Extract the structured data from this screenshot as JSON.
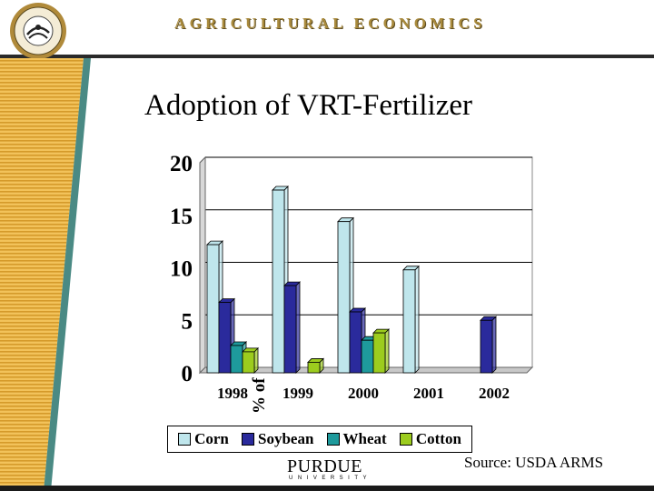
{
  "header": {
    "title": "AGRICULTURAL ECONOMICS",
    "seal_text": "AGRICULTURAL ECONOMICS"
  },
  "slide": {
    "title": "Adoption of VRT-Fertilizer",
    "source": "Source:  USDA ARMS",
    "logo_word": "PURDUE",
    "logo_sub": "UNIVERSITY"
  },
  "colors": {
    "corn": "#bfe6ec",
    "soybean": "#2a2a9c",
    "wheat": "#1e9a9c",
    "cotton": "#9ccc1e",
    "gold_stripe": "#e0a838",
    "teal_stripe": "#4a8a84",
    "header_text": "#a98a3c"
  },
  "chart_data": {
    "type": "bar",
    "title": "",
    "xlabel": "",
    "ylabel": "% of planted acres",
    "categories": [
      "1998",
      "1999",
      "2000",
      "2001",
      "2002"
    ],
    "yticks": [
      "0",
      "5",
      "10",
      "15",
      "20"
    ],
    "ylim": [
      0,
      20
    ],
    "grid": true,
    "legend_position": "bottom",
    "series": [
      {
        "name": "Corn",
        "values": [
          12.2,
          17.4,
          14.4,
          9.8,
          0
        ]
      },
      {
        "name": "Soybean",
        "values": [
          6.7,
          8.3,
          5.8,
          0,
          5.0
        ]
      },
      {
        "name": "Wheat",
        "values": [
          2.6,
          0,
          3.1,
          0,
          0
        ]
      },
      {
        "name": "Cotton",
        "values": [
          2.0,
          1.0,
          3.8,
          0,
          0
        ]
      }
    ]
  }
}
